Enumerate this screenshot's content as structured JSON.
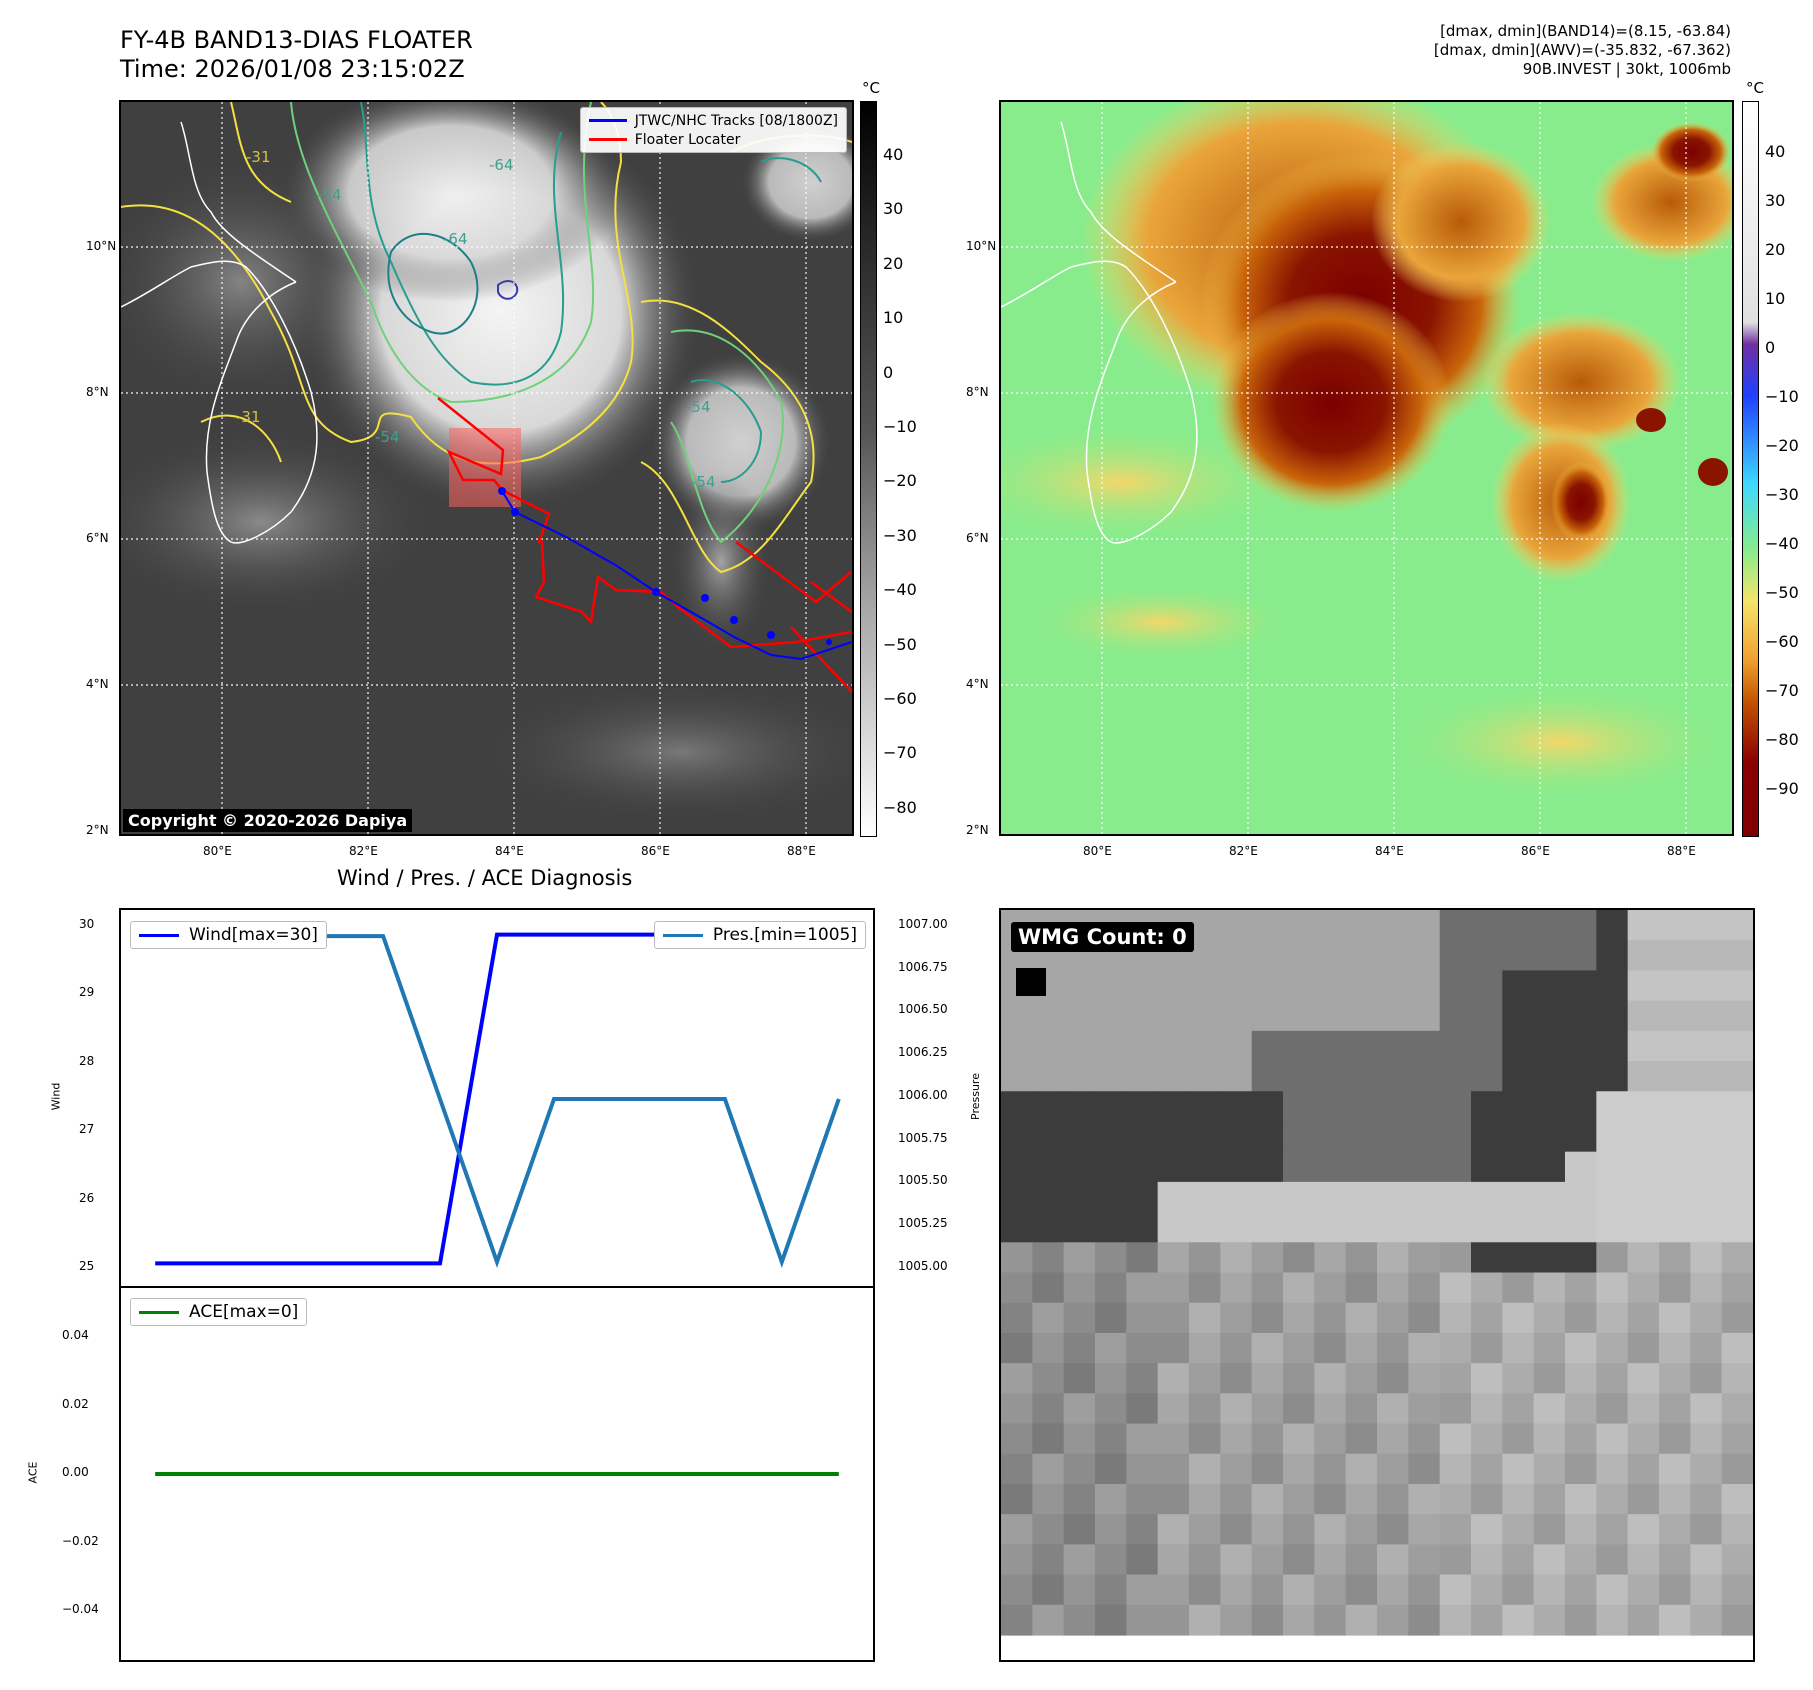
{
  "header": {
    "title_line1": "FY-4B BAND13-DIAS FLOATER",
    "title_line2": "Time: 2026/01/08 23:15:02Z",
    "info_line1": "[dmax, dmin](BAND14)=(8.15, -63.84)",
    "info_line2": "[dmax, dmin](AWV)=(-35.832, -67.362)",
    "info_line3": "90B.INVEST | 30kt, 1006mb"
  },
  "map_axes": {
    "lat_labels": [
      "10°N",
      "8°N",
      "6°N",
      "4°N",
      "2°N"
    ],
    "lon_labels": [
      "80°E",
      "82°E",
      "84°E",
      "86°E",
      "88°E"
    ]
  },
  "left_map": {
    "legend": [
      {
        "label": "JTWC/NHC Tracks [08/1800Z]",
        "color": "#0000ff"
      },
      {
        "label": "Floater Locater",
        "color": "#ff0000"
      }
    ],
    "contour_labels": [
      "-64",
      "-64",
      "-54",
      "-54",
      "-54",
      "-54",
      "-31",
      "-31"
    ],
    "copyright": "Copyright © 2020-2026 Dapiya"
  },
  "colorbar_left": {
    "unit": "°C",
    "ticks": [
      "40",
      "30",
      "20",
      "10",
      "0",
      "−10",
      "−20",
      "−30",
      "−40",
      "−50",
      "−60",
      "−70",
      "−80"
    ]
  },
  "colorbar_right": {
    "unit": "°C",
    "ticks": [
      "40",
      "30",
      "20",
      "10",
      "0",
      "−10",
      "−20",
      "−30",
      "−40",
      "−50",
      "−60",
      "−70",
      "−80",
      "−90"
    ]
  },
  "diagnosis": {
    "title": "Wind / Pres. / ACE Diagnosis",
    "wind_legend": "Wind[max=30]",
    "pres_legend": "Pres.[min=1005]",
    "ace_legend": "ACE[max=0]",
    "wind_axis_label": "Wind",
    "pres_axis_label": "Pressure",
    "ace_axis_label": "ACE",
    "wind_ticks": [
      "30",
      "29",
      "28",
      "27",
      "26",
      "25"
    ],
    "pres_ticks": [
      "1007.00",
      "1006.75",
      "1006.50",
      "1006.25",
      "1006.00",
      "1005.75",
      "1005.50",
      "1005.25",
      "1005.00"
    ],
    "ace_ticks": [
      "0.04",
      "0.02",
      "0.00",
      "−0.02",
      "−0.04"
    ]
  },
  "wmg": {
    "label": "WMG Count: 0"
  },
  "chart_data": [
    {
      "type": "line",
      "title": "Wind / Pres. / ACE Diagnosis",
      "x": [
        0,
        1,
        2,
        3,
        4,
        5,
        6,
        7,
        8,
        9,
        10,
        11,
        12
      ],
      "series": [
        {
          "name": "Wind[max=30]",
          "axis": "left",
          "color": "#0000ff",
          "values": [
            25,
            25,
            25,
            25,
            25,
            25,
            30,
            30,
            30,
            30,
            30,
            30,
            30
          ]
        },
        {
          "name": "Pres.[min=1005]",
          "axis": "right",
          "color": "#1f77b4",
          "values": [
            1007,
            1007,
            1007,
            1007,
            1007,
            1006,
            1005,
            1006,
            1006,
            1006,
            1006,
            1005,
            1006
          ]
        }
      ],
      "ylabel": "Wind",
      "ylim": [
        24.9,
        30.1
      ],
      "y2label": "Pressure",
      "y2lim": [
        1004.95,
        1007.05
      ]
    },
    {
      "type": "line",
      "x": [
        0,
        12
      ],
      "series": [
        {
          "name": "ACE[max=0]",
          "color": "#008000",
          "values": [
            0,
            0
          ]
        }
      ],
      "ylabel": "ACE",
      "ylim": [
        -0.055,
        0.055
      ]
    }
  ]
}
